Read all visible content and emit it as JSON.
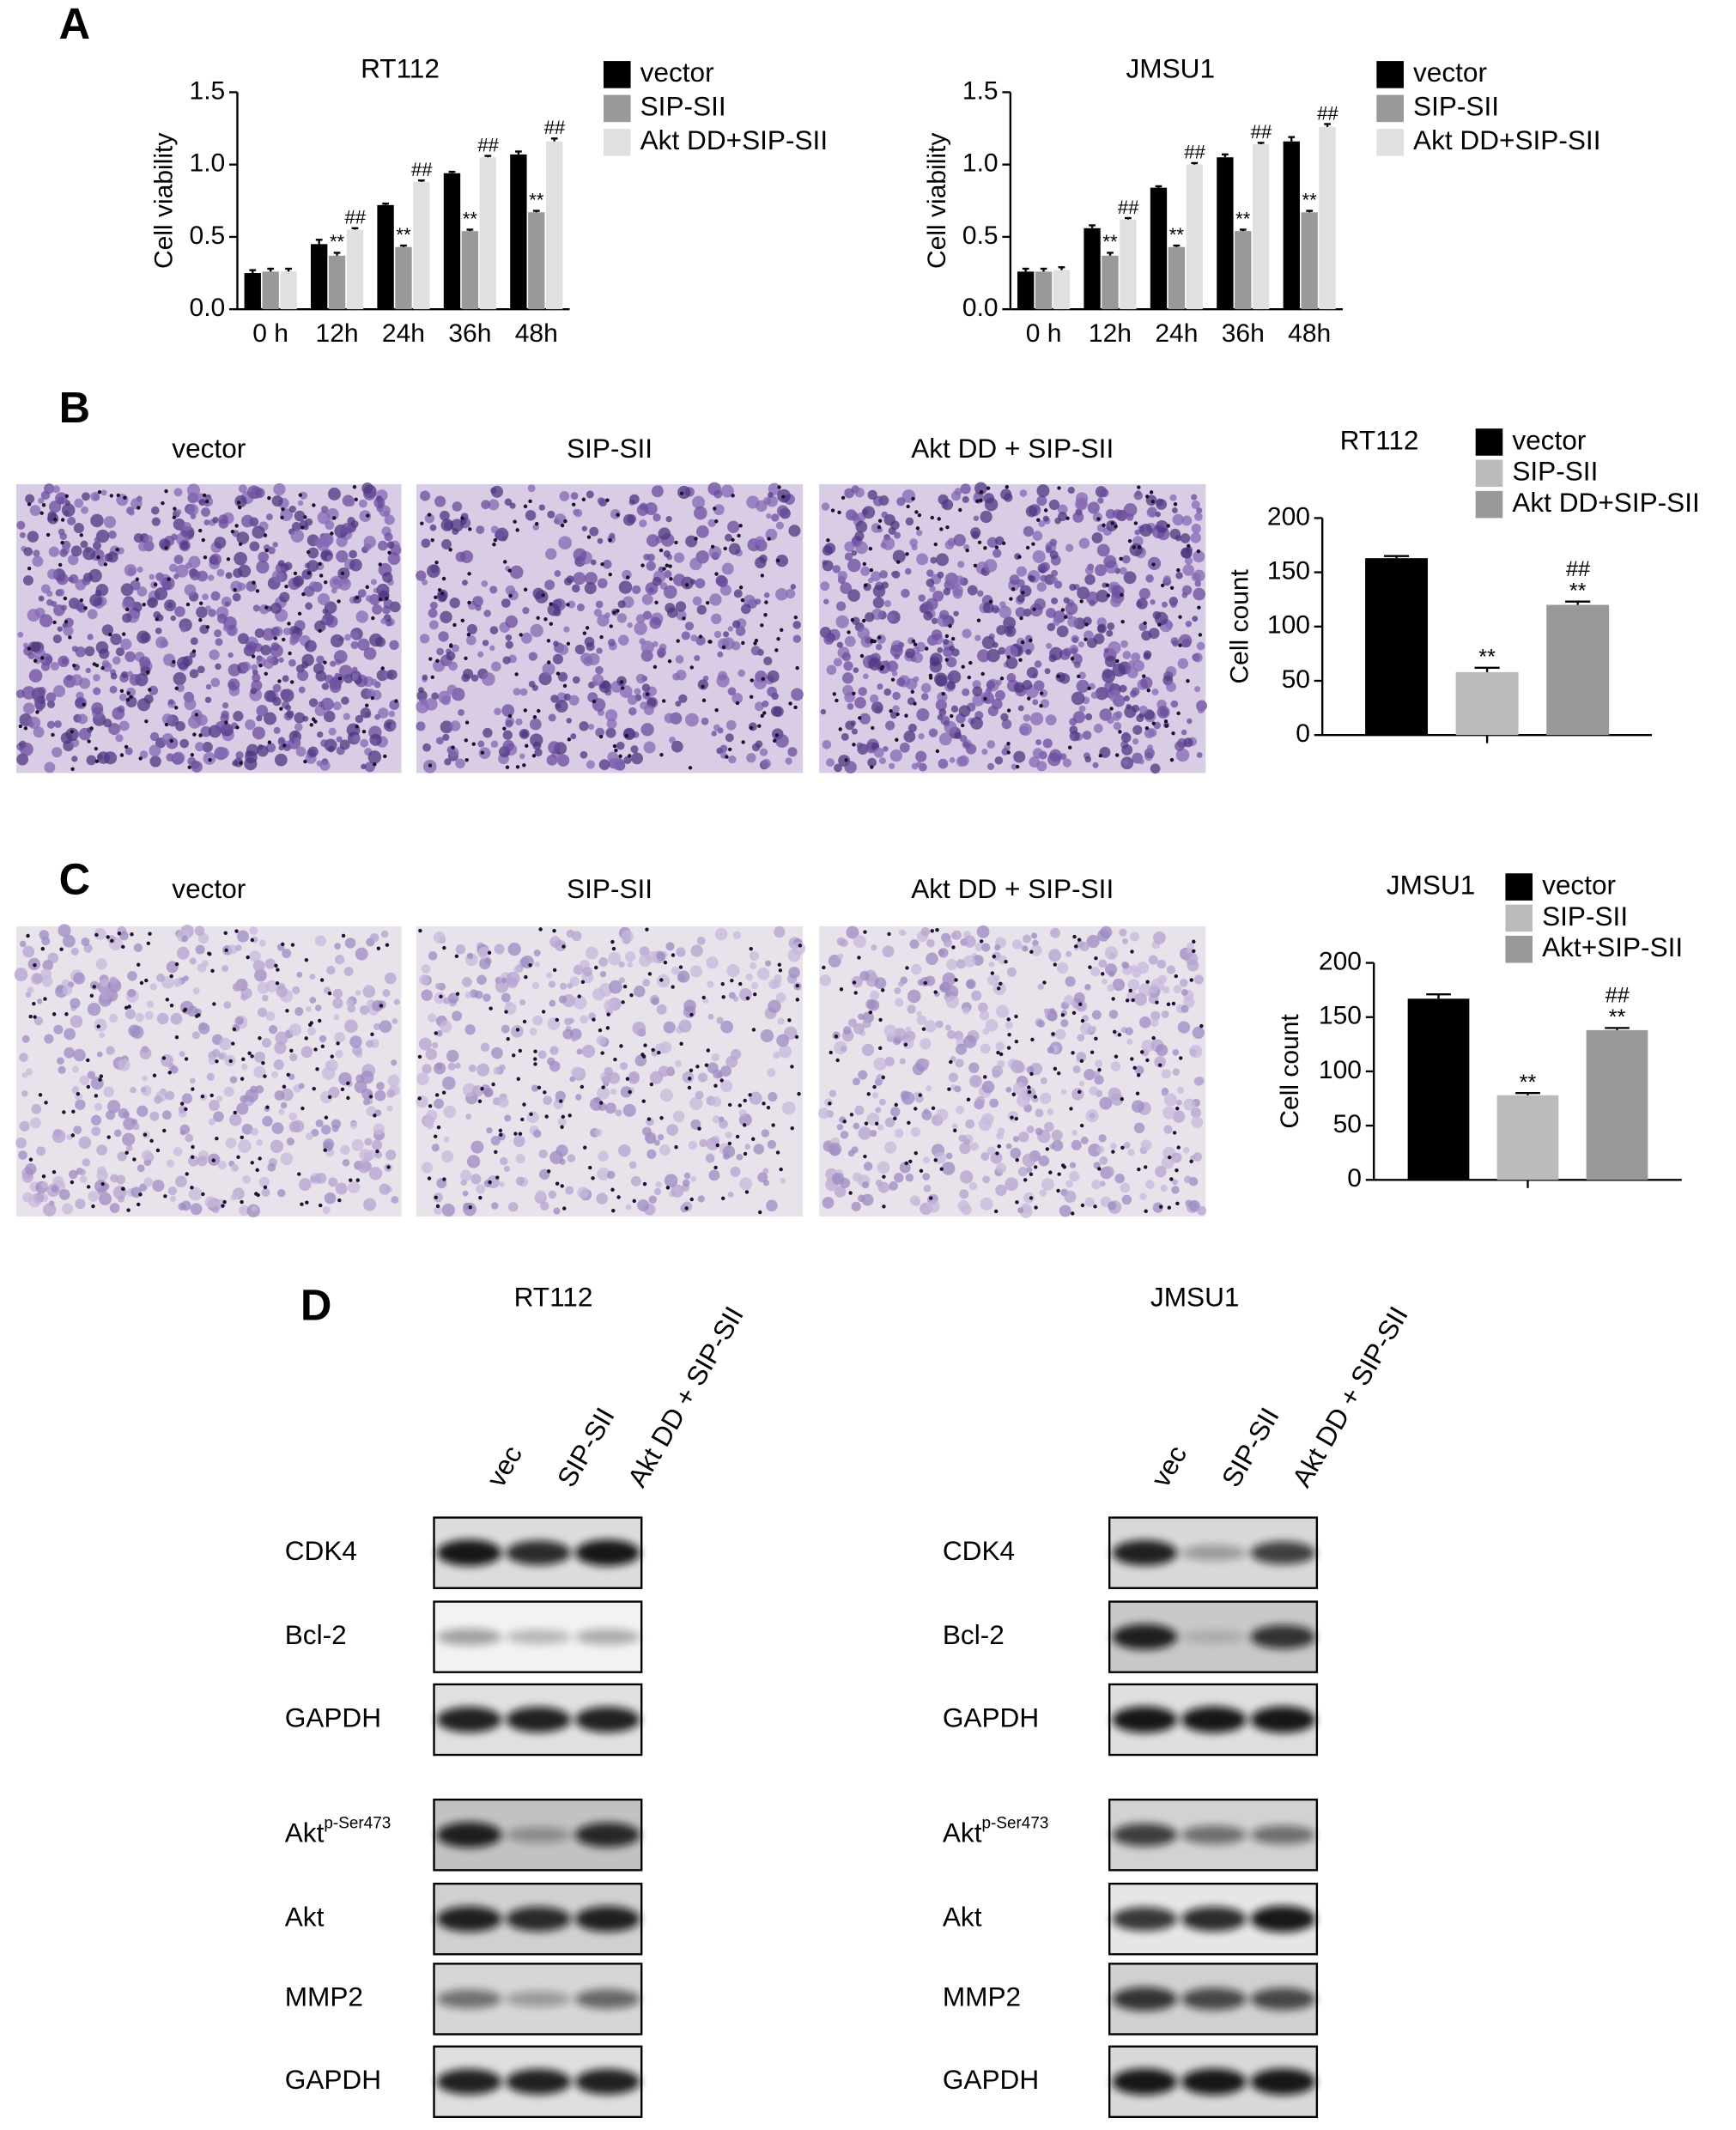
{
  "panel_labels": [
    "A",
    "B",
    "C",
    "D"
  ],
  "chart_data": [
    {
      "type": "bar",
      "title": "RT112",
      "y_label": "Cell viability",
      "legend": "right",
      "categories": [
        "0 h",
        "12h",
        "24h",
        "36h",
        "48h"
      ],
      "ylim": [
        0,
        1.5
      ],
      "yticks": [
        {
          "value": 0,
          "label": "0.0"
        },
        0.5,
        {
          "value": 1,
          "label": "1.0"
        },
        1.5
      ],
      "series": [
        {
          "name": "vector",
          "color": "#000000",
          "values": [
            0.25,
            0.45,
            0.72,
            0.94,
            1.07
          ],
          "errors": [
            0.02,
            0.03,
            0.01,
            0.01,
            0.02
          ],
          "marks": [
            null,
            null,
            null,
            null,
            null
          ]
        },
        {
          "name": "SIP-SII",
          "color": "#999999",
          "values": [
            0.26,
            0.37,
            0.43,
            0.54,
            0.67
          ],
          "errors": [
            0.02,
            0.02,
            0.01,
            0.01,
            0.01
          ],
          "marks": [
            null,
            [
              "**"
            ],
            [
              "**"
            ],
            [
              "**"
            ],
            [
              "**"
            ]
          ]
        },
        {
          "name": "Akt DD+SIP-SII",
          "color": "#e0e0e0",
          "values": [
            0.26,
            0.55,
            0.88,
            1.05,
            1.16
          ],
          "errors": [
            0.02,
            0.01,
            0.01,
            0.01,
            0.02
          ],
          "marks": [
            null,
            [
              "##"
            ],
            [
              "##"
            ],
            [
              "##"
            ],
            [
              "##"
            ]
          ]
        }
      ]
    },
    {
      "type": "bar",
      "title": "JMSU1",
      "y_label": "Cell viability",
      "legend": "right",
      "categories": [
        "0 h",
        "12h",
        "24h",
        "36h",
        "48h"
      ],
      "ylim": [
        0,
        1.5
      ],
      "yticks": [
        {
          "value": 0,
          "label": "0.0"
        },
        0.5,
        {
          "value": 1,
          "label": "1.0"
        },
        1.5
      ],
      "series": [
        {
          "name": "vector",
          "color": "#000000",
          "values": [
            0.26,
            0.56,
            0.84,
            1.05,
            1.16
          ],
          "errors": [
            0.02,
            0.02,
            0.01,
            0.02,
            0.03
          ],
          "marks": [
            null,
            null,
            null,
            null,
            null
          ]
        },
        {
          "name": "SIP-SII",
          "color": "#999999",
          "values": [
            0.26,
            0.37,
            0.43,
            0.54,
            0.67
          ],
          "errors": [
            0.02,
            0.02,
            0.01,
            0.01,
            0.01
          ],
          "marks": [
            null,
            [
              "**"
            ],
            [
              "**"
            ],
            [
              "**"
            ],
            [
              "**"
            ]
          ]
        },
        {
          "name": "Akt DD+SIP-SII",
          "color": "#e0e0e0",
          "values": [
            0.27,
            0.62,
            1.0,
            1.14,
            1.26
          ],
          "errors": [
            0.02,
            0.01,
            0.01,
            0.01,
            0.02
          ],
          "marks": [
            null,
            [
              "##"
            ],
            [
              "##"
            ],
            [
              "##"
            ],
            [
              "##"
            ]
          ]
        }
      ]
    },
    {
      "type": "bar",
      "title": "RT112",
      "y_label": "Cell count",
      "legend": "top-right",
      "categories": [
        null
      ],
      "ylim": [
        0,
        200
      ],
      "yticks": [
        0,
        50,
        100,
        150,
        200
      ],
      "series": [
        {
          "name": "vector",
          "color": "#000000",
          "values": [
            163
          ],
          "errors": [
            2
          ],
          "marks": [
            null
          ]
        },
        {
          "name": "SIP-SII",
          "color": "#bbbbbb",
          "values": [
            58
          ],
          "errors": [
            4
          ],
          "marks": [
            [
              "**"
            ]
          ]
        },
        {
          "name": "Akt DD+SIP-SII",
          "color": "#999999",
          "values": [
            120
          ],
          "errors": [
            3
          ],
          "marks": [
            [
              "**",
              "##"
            ]
          ]
        }
      ]
    },
    {
      "type": "bar",
      "title": "JMSU1",
      "y_label": "Cell count",
      "legend": "top-right",
      "categories": [
        null
      ],
      "ylim": [
        0,
        200
      ],
      "yticks": [
        0,
        50,
        100,
        150,
        200
      ],
      "series": [
        {
          "name": "vector",
          "color": "#000000",
          "values": [
            167
          ],
          "errors": [
            4
          ],
          "marks": [
            null
          ]
        },
        {
          "name": "SIP-SII",
          "color": "#bbbbbb",
          "values": [
            78
          ],
          "errors": [
            2
          ],
          "marks": [
            [
              "**"
            ]
          ]
        },
        {
          "name": "Akt+SIP-SII",
          "color": "#999999",
          "values": [
            138
          ],
          "errors": [
            2
          ],
          "marks": [
            [
              "**",
              "##"
            ]
          ]
        }
      ]
    }
  ],
  "micrographs": {
    "B": {
      "labels": [
        "vector",
        "SIP-SII",
        "Akt DD + SIP-SII"
      ]
    },
    "C": {
      "labels": [
        "vector",
        "SIP-SII",
        "Akt DD + SIP-SII"
      ]
    }
  },
  "western_blot": {
    "cell_lines": [
      "RT112",
      "JMSU1"
    ],
    "lanes": [
      "vec",
      "SIP-SII",
      "Akt DD + SIP-SII"
    ],
    "rows": [
      "CDK4",
      "Bcl-2",
      "GAPDH",
      {
        "text": "Akt",
        "superscript": "p-Ser473"
      },
      "Akt",
      "MMP2",
      "GAPDH"
    ]
  }
}
